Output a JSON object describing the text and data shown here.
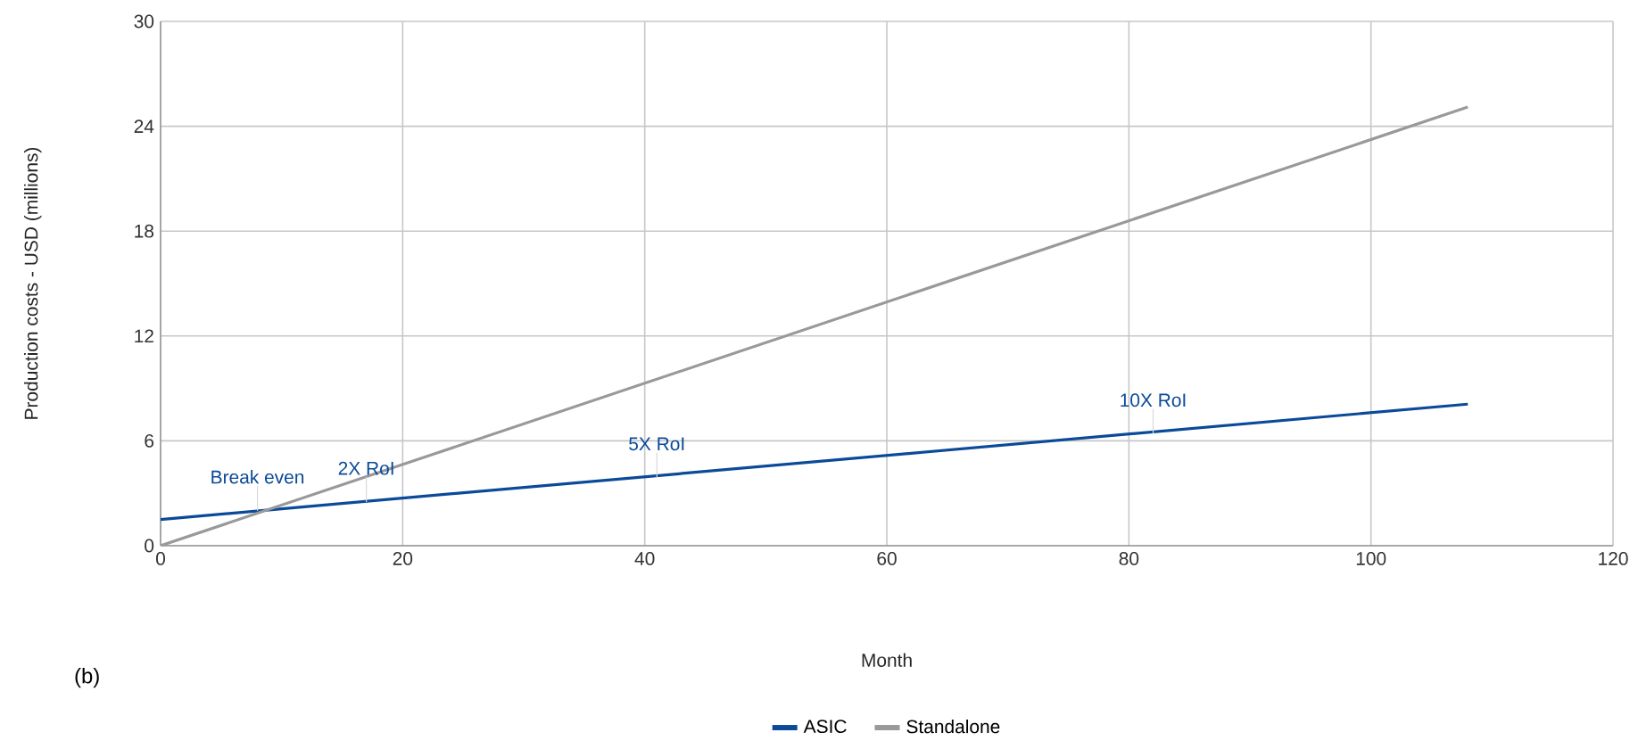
{
  "chart_data": {
    "type": "line",
    "xlabel": "Month",
    "ylabel": "Production costs - USD (millions)",
    "xlim": [
      0,
      120
    ],
    "xticks": [
      0,
      20,
      40,
      60,
      80,
      100,
      120
    ],
    "ylim": [
      0,
      30
    ],
    "yticks": [
      0,
      6,
      12,
      18,
      24,
      30
    ],
    "x": [
      0,
      108
    ],
    "grid": true,
    "legend": "bottom",
    "marker": "none",
    "line_style": "solid",
    "series": [
      {
        "name": "ASIC",
        "color": "#0b4a99",
        "values": [
          1.5,
          8.1
        ]
      },
      {
        "name": "Standalone",
        "color": "#999999",
        "values": [
          0,
          25.1
        ]
      }
    ],
    "annotations": [
      {
        "text": "Break even",
        "x": 8,
        "y": 2.0
      },
      {
        "text": "2X RoI",
        "x": 17,
        "y": 2.5
      },
      {
        "text": "5X RoI",
        "x": 41,
        "y": 3.9
      },
      {
        "text": "10X RoI",
        "x": 82,
        "y": 6.4
      },
      "(b)"
    ]
  }
}
